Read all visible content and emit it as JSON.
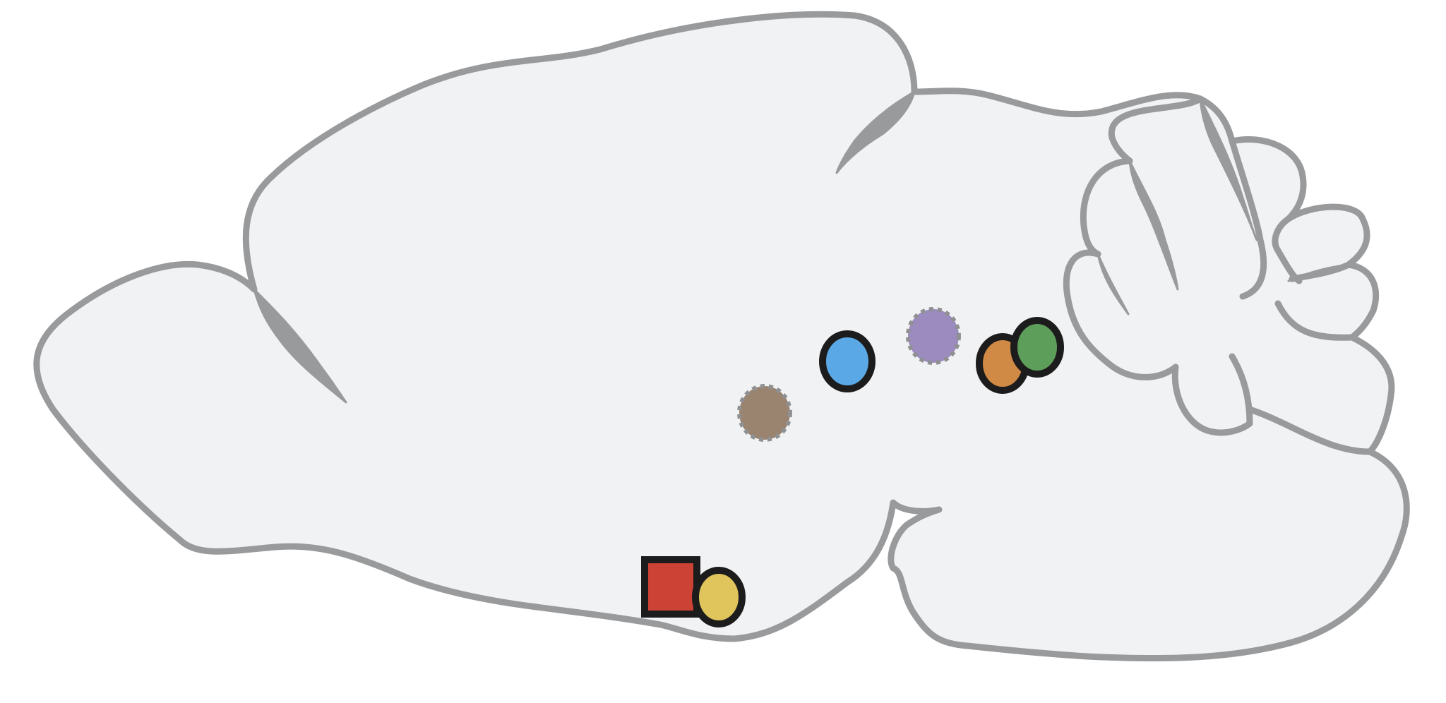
{
  "colors": {
    "brain_fill": "#f1f2f4",
    "outline": "#999a9c",
    "marker_border": "#1c1c1c",
    "dashed_border": "#8f9092"
  },
  "markers": [
    {
      "id": "blue",
      "shape": "circle",
      "border": "solid",
      "color": "#5aa9e6"
    },
    {
      "id": "purple",
      "shape": "circle",
      "border": "dashed",
      "color": "#9b8bbf"
    },
    {
      "id": "orange",
      "shape": "circle",
      "border": "solid",
      "color": "#d08a45"
    },
    {
      "id": "green",
      "shape": "circle",
      "border": "solid",
      "color": "#5e9e5b"
    },
    {
      "id": "brown",
      "shape": "circle",
      "border": "dashed",
      "color": "#9a8470"
    },
    {
      "id": "red",
      "shape": "square",
      "border": "solid",
      "color": "#cc4235"
    },
    {
      "id": "yellow",
      "shape": "circle",
      "border": "solid",
      "color": "#e0c45c"
    }
  ]
}
